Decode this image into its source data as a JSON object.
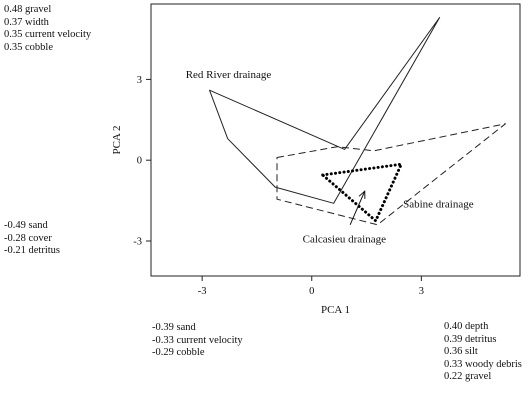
{
  "chart_data": {
    "type": "scatter",
    "title": "",
    "xlabel": "PCA 1",
    "ylabel": "PCA 2",
    "xlim": [
      -4.4,
      5.7
    ],
    "ylim": [
      -4.3,
      5.8
    ],
    "x_ticks": [
      -3,
      0,
      3
    ],
    "y_ticks": [
      -3,
      0,
      3
    ],
    "grid": false,
    "series": [
      {
        "name": "Red River drainage",
        "style": "solid",
        "color": "#222222",
        "polygon": [
          [
            -2.8,
            2.6
          ],
          [
            0.9,
            0.4
          ],
          [
            3.5,
            5.3
          ],
          [
            0.6,
            -1.6
          ],
          [
            -1.0,
            -1.0
          ],
          [
            -2.3,
            0.8
          ]
        ]
      },
      {
        "name": "Sabine drainage",
        "style": "dashed",
        "color": "#222222",
        "polygon": [
          [
            -0.95,
            0.1
          ],
          [
            0.7,
            0.5
          ],
          [
            1.7,
            0.35
          ],
          [
            5.3,
            1.35
          ],
          [
            1.8,
            -2.4
          ],
          [
            -0.95,
            -1.45
          ]
        ]
      },
      {
        "name": "Calcasieu drainage",
        "style": "dotted",
        "color": "#000000",
        "polygon": [
          [
            0.3,
            -0.55
          ],
          [
            2.45,
            -0.15
          ],
          [
            1.75,
            -2.25
          ]
        ]
      }
    ],
    "annotations": [
      {
        "text": "Red River drainage",
        "x": -3.45,
        "y": 3.05
      },
      {
        "text": "Sabine drainage",
        "x": 2.5,
        "y": -1.75
      },
      {
        "text": "Calcasieu drainage",
        "x": -0.25,
        "y": -3.05
      }
    ],
    "arrow": {
      "from": [
        1.05,
        -2.4
      ],
      "to": [
        1.45,
        -1.15
      ]
    },
    "loadings": {
      "y_positive": [
        "0.48 gravel",
        "0.37 width",
        "0.35 current velocity",
        "0.35 cobble"
      ],
      "y_negative": [
        "-0.49 sand",
        "-0.28 cover",
        "-0.21 detritus"
      ],
      "x_negative": [
        "-0.39 sand",
        "-0.33 current velocity",
        "-0.29 cobble"
      ],
      "x_positive": [
        "0.40 depth",
        "0.39 detritus",
        "0.36 silt",
        "0.33 woody debris",
        "0.22 gravel"
      ]
    }
  }
}
